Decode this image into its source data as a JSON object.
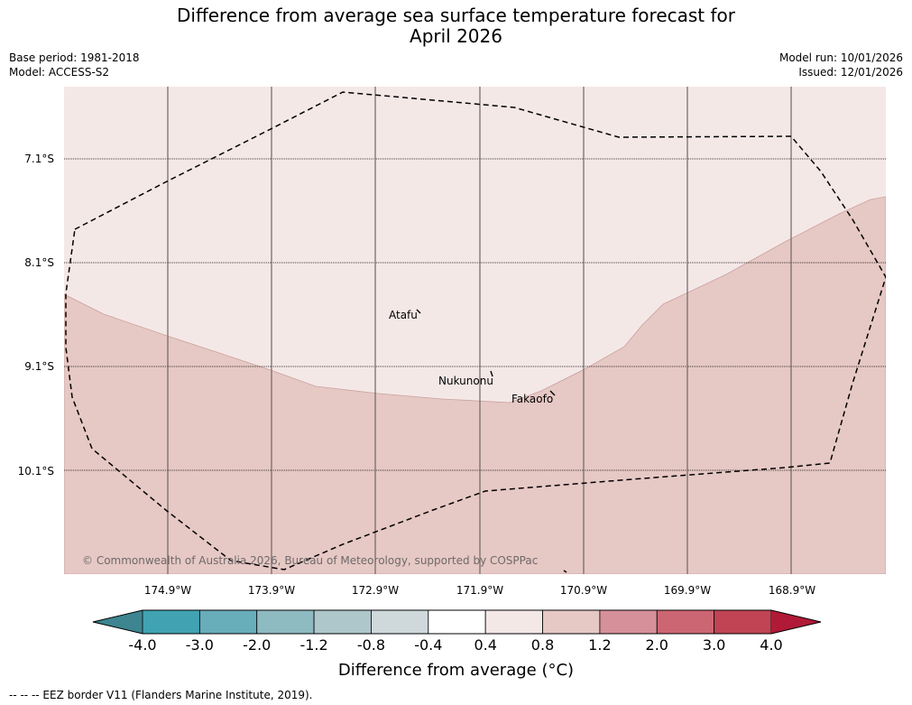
{
  "title": {
    "line1": "Difference from average sea surface temperature forecast for",
    "line2": "April 2026"
  },
  "meta": {
    "base_period": "Base period: 1981-2018",
    "model": "Model: ACCESS-S2",
    "model_run": "Model run: 10/01/2026",
    "issued": "Issued: 12/01/2026"
  },
  "map": {
    "lat_labels": [
      "7.1°S",
      "8.1°S",
      "9.1°S",
      "10.1°S"
    ],
    "lon_labels": [
      "174.9°W",
      "173.9°W",
      "172.9°W",
      "171.9°W",
      "170.9°W",
      "169.9°W",
      "168.9°W"
    ],
    "places": [
      "Atafu",
      "Nukunonu",
      "Fakaofo"
    ],
    "copyright": "© Commonwealth of Australia 2026, Bureau of Meteorology, supported by COSPPac",
    "colors": {
      "zone_0_4_0_8": "#f4e8e7",
      "zone_0_8_1_2": "#e6c8c4",
      "grid": "#6f6464",
      "eez": "#000000"
    }
  },
  "colorbar": {
    "ticks": [
      "-4.0",
      "-3.0",
      "-2.0",
      "-1.2",
      "-0.8",
      "-0.4",
      "0.4",
      "0.8",
      "1.2",
      "2.0",
      "3.0",
      "4.0"
    ],
    "colors": [
      "#41a3b2",
      "#67adba",
      "#8ebac2",
      "#aec7cb",
      "#cfd8da",
      "#ffffff",
      "#f4e8e7",
      "#e6c8c4",
      "#d6909a",
      "#cc6672",
      "#c04454"
    ],
    "under_color": "#3d8590",
    "over_color": "#b01a37",
    "label": "Difference from average (°C)"
  },
  "footnote": "--  --  -- EEZ border V11 (Flanders Marine Institute, 2019)."
}
